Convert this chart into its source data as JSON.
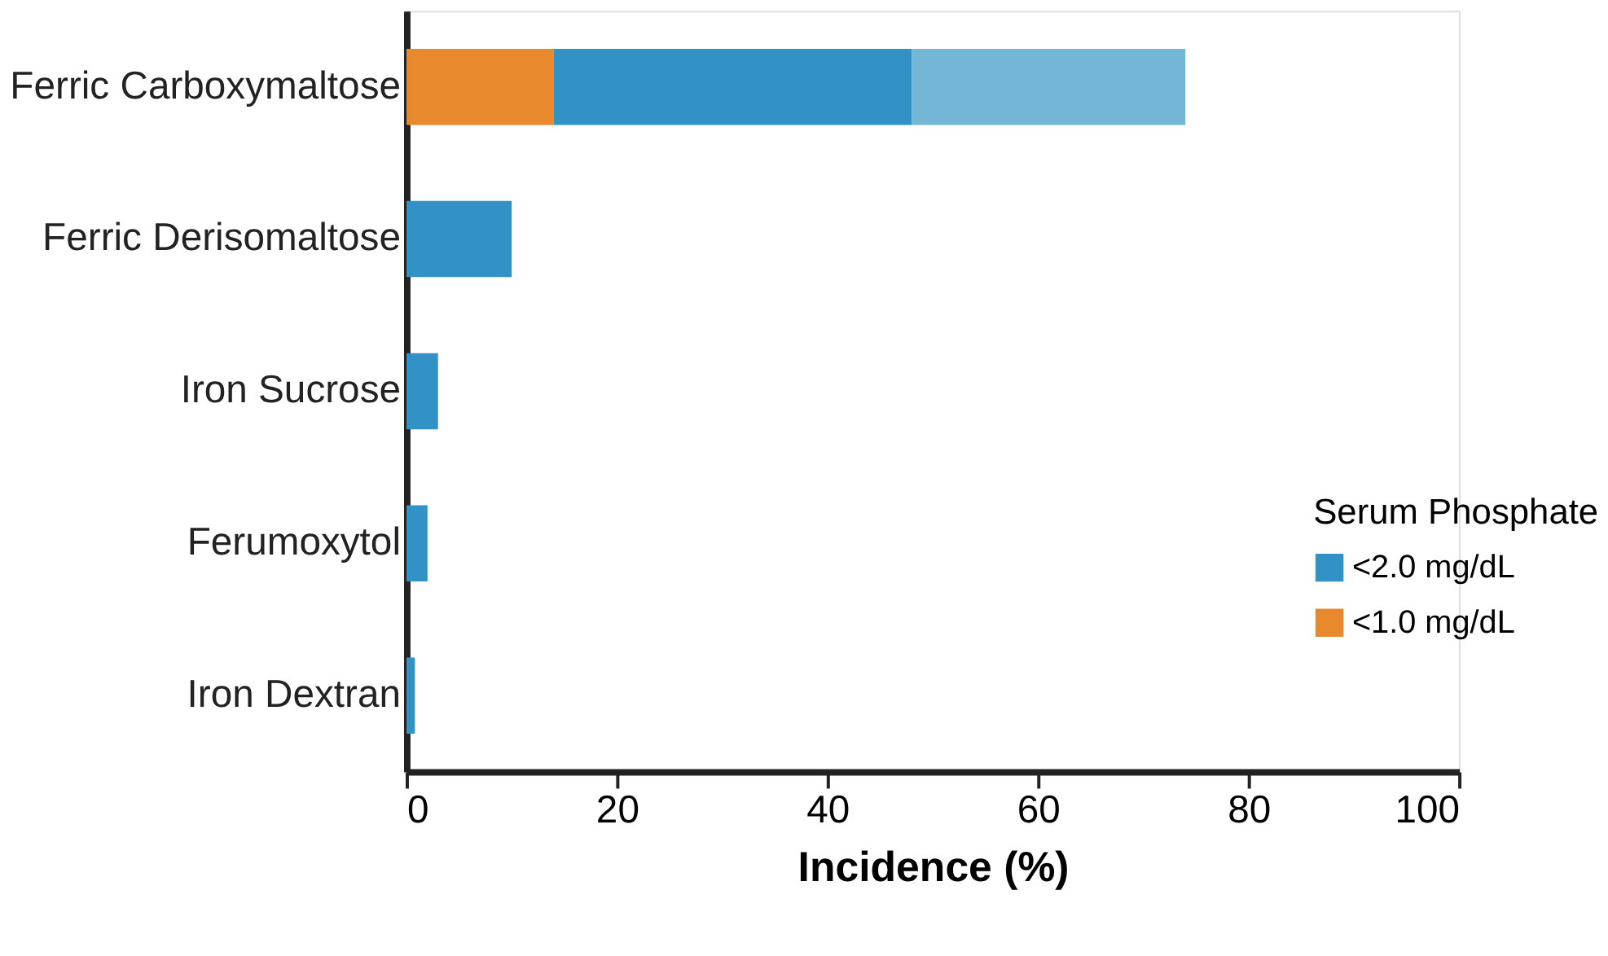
{
  "chart_data": {
    "type": "bar",
    "orientation": "horizontal",
    "stacked": true,
    "categories": [
      "Ferric Carboxymaltose",
      "Ferric Derisomaltose",
      "Iron Sucrose",
      "Ferumoxytol",
      "Iron Dextran"
    ],
    "series": [
      {
        "name": "<1.0 mg/dL",
        "color": "#e8892e",
        "values": [
          14,
          null,
          null,
          null,
          null
        ]
      },
      {
        "name": "<2.0 mg/dL",
        "color": "#3291c5",
        "values": [
          34,
          10,
          3,
          2,
          0.8
        ]
      },
      {
        "color": "#74b6d6",
        "values": [
          26,
          null,
          null,
          null,
          null
        ]
      }
    ],
    "xlabel": "Incidence (%)",
    "legend_title": "Serum Phosphate",
    "legend": "right",
    "xlim": [
      0,
      100
    ],
    "xticks": [
      0,
      20,
      40,
      60,
      80,
      100
    ],
    "grid": false
  }
}
